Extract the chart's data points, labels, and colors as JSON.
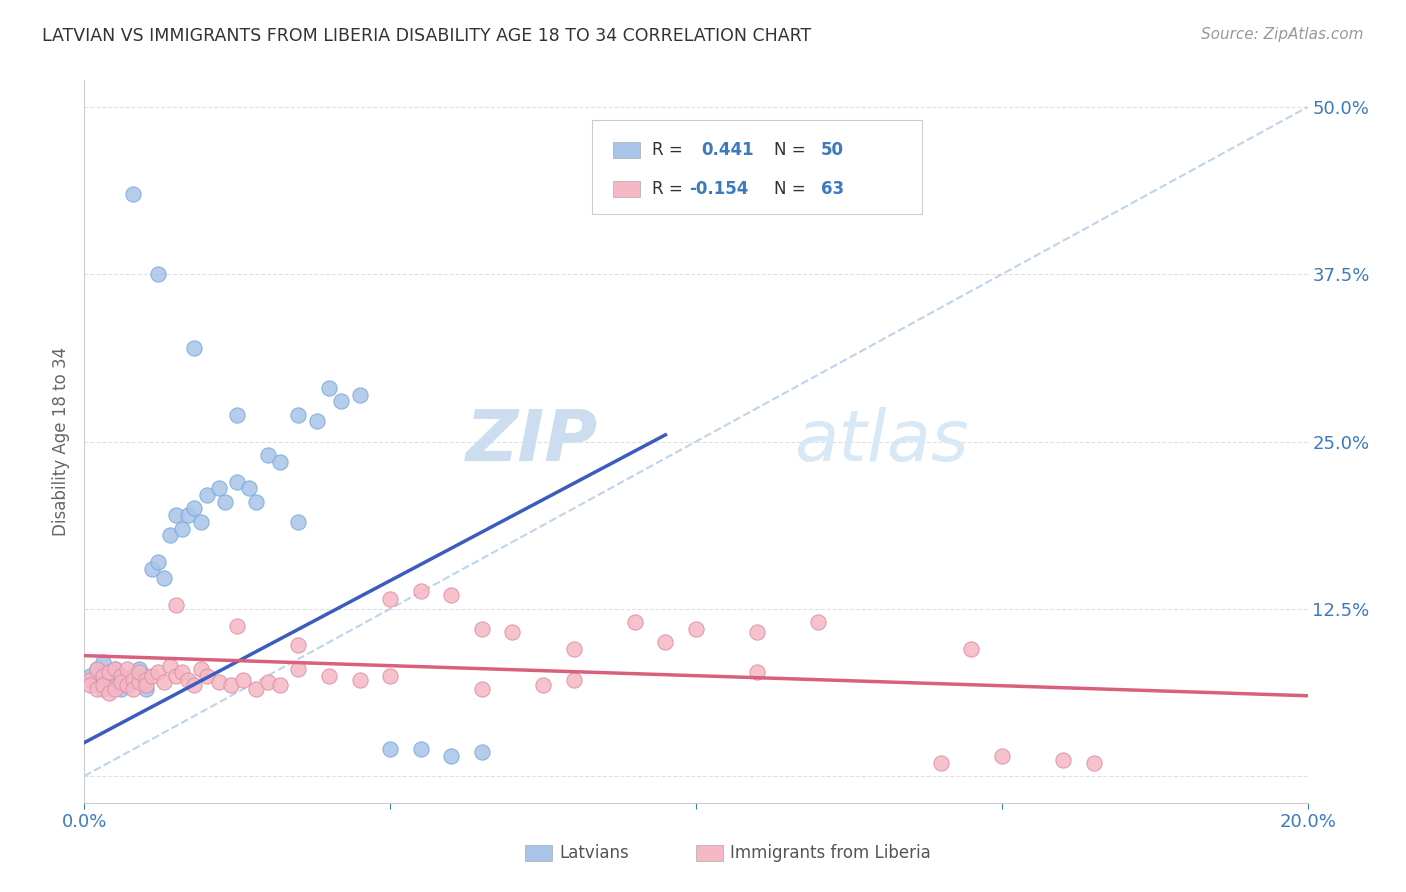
{
  "title": "LATVIAN VS IMMIGRANTS FROM LIBERIA DISABILITY AGE 18 TO 34 CORRELATION CHART",
  "source": "Source: ZipAtlas.com",
  "ylabel": "Disability Age 18 to 34",
  "x_min": 0.0,
  "x_max": 0.2,
  "y_min": -0.02,
  "y_max": 0.52,
  "latvian_R": 0.441,
  "latvian_N": 50,
  "liberia_R": -0.154,
  "liberia_N": 63,
  "blue_color": "#a8c4e8",
  "pink_color": "#f5b8c4",
  "blue_line_color": "#3a5cbf",
  "pink_line_color": "#d9607a",
  "dashed_line_color": "#b8cfe8",
  "watermark_color": "#d8e6f5",
  "grid_color": "#cccccc",
  "tick_color": "#3a7abf",
  "latvians_x": [
    0.001,
    0.002,
    0.002,
    0.003,
    0.003,
    0.004,
    0.004,
    0.005,
    0.005,
    0.005,
    0.006,
    0.006,
    0.007,
    0.007,
    0.008,
    0.009,
    0.009,
    0.01,
    0.01,
    0.011,
    0.012,
    0.013,
    0.014,
    0.015,
    0.016,
    0.017,
    0.018,
    0.019,
    0.02,
    0.022,
    0.023,
    0.025,
    0.027,
    0.028,
    0.03,
    0.032,
    0.035,
    0.038,
    0.04,
    0.042,
    0.045,
    0.05,
    0.055,
    0.06,
    0.065,
    0.008,
    0.012,
    0.018,
    0.025,
    0.035
  ],
  "latvians_y": [
    0.075,
    0.07,
    0.08,
    0.065,
    0.085,
    0.072,
    0.068,
    0.08,
    0.072,
    0.068,
    0.075,
    0.065,
    0.072,
    0.068,
    0.075,
    0.07,
    0.08,
    0.075,
    0.065,
    0.155,
    0.16,
    0.148,
    0.18,
    0.195,
    0.185,
    0.195,
    0.2,
    0.19,
    0.21,
    0.215,
    0.205,
    0.22,
    0.215,
    0.205,
    0.24,
    0.235,
    0.27,
    0.265,
    0.29,
    0.28,
    0.285,
    0.02,
    0.02,
    0.015,
    0.018,
    0.435,
    0.375,
    0.32,
    0.27,
    0.19
  ],
  "liberia_x": [
    0.001,
    0.001,
    0.002,
    0.002,
    0.003,
    0.003,
    0.004,
    0.004,
    0.005,
    0.005,
    0.006,
    0.006,
    0.007,
    0.007,
    0.008,
    0.008,
    0.009,
    0.009,
    0.01,
    0.01,
    0.011,
    0.012,
    0.013,
    0.014,
    0.015,
    0.016,
    0.017,
    0.018,
    0.019,
    0.02,
    0.022,
    0.024,
    0.026,
    0.028,
    0.03,
    0.032,
    0.035,
    0.04,
    0.045,
    0.05,
    0.055,
    0.06,
    0.065,
    0.07,
    0.075,
    0.08,
    0.09,
    0.095,
    0.1,
    0.11,
    0.12,
    0.14,
    0.15,
    0.16,
    0.165,
    0.015,
    0.025,
    0.035,
    0.05,
    0.065,
    0.08,
    0.11,
    0.145
  ],
  "liberia_y": [
    0.072,
    0.068,
    0.08,
    0.065,
    0.075,
    0.068,
    0.078,
    0.062,
    0.08,
    0.065,
    0.075,
    0.07,
    0.068,
    0.08,
    0.072,
    0.065,
    0.07,
    0.078,
    0.072,
    0.068,
    0.075,
    0.078,
    0.07,
    0.082,
    0.075,
    0.078,
    0.072,
    0.068,
    0.08,
    0.075,
    0.07,
    0.068,
    0.072,
    0.065,
    0.07,
    0.068,
    0.08,
    0.075,
    0.072,
    0.132,
    0.138,
    0.135,
    0.11,
    0.108,
    0.068,
    0.072,
    0.115,
    0.1,
    0.11,
    0.108,
    0.115,
    0.01,
    0.015,
    0.012,
    0.01,
    0.128,
    0.112,
    0.098,
    0.075,
    0.065,
    0.095,
    0.078,
    0.095
  ],
  "blue_line_x0": 0.0,
  "blue_line_y0": 0.025,
  "blue_line_x1": 0.095,
  "blue_line_y1": 0.255,
  "pink_line_x0": 0.0,
  "pink_line_y0": 0.09,
  "pink_line_x1": 0.2,
  "pink_line_y1": 0.06
}
